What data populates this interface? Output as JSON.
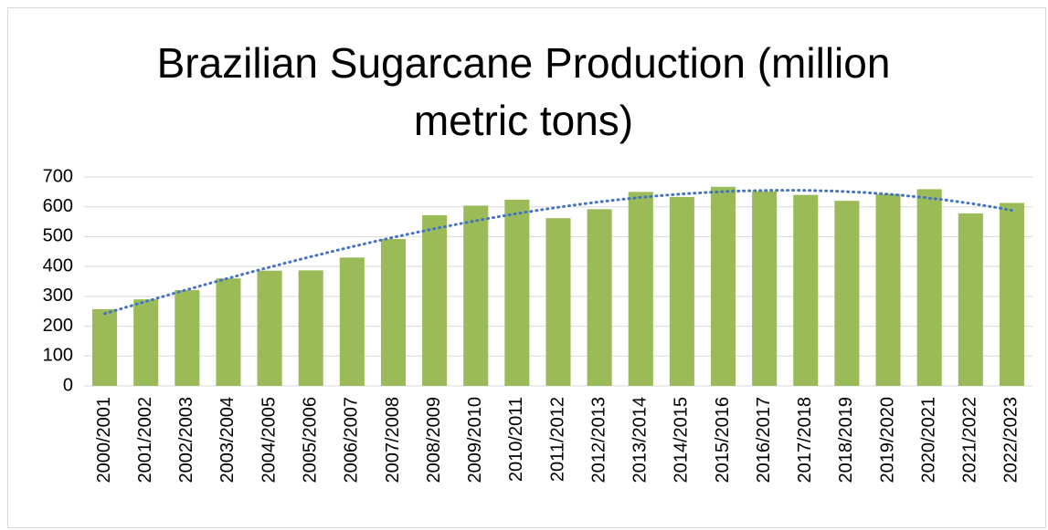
{
  "chart_data": {
    "type": "bar",
    "title": "Brazilian Sugarcane Production (million metric tons)",
    "categories": [
      "2000/2001",
      "2001/2002",
      "2002/2003",
      "2003/2004",
      "2004/2005",
      "2005/2006",
      "2006/2007",
      "2007/2008",
      "2008/2009",
      "2009/2010",
      "2010/2011",
      "2011/2012",
      "2012/2013",
      "2013/2014",
      "2014/2015",
      "2015/2016",
      "2016/2017",
      "2017/2018",
      "2018/2019",
      "2019/2020",
      "2020/2021",
      "2021/2022",
      "2022/2023"
    ],
    "values": [
      257,
      290,
      321,
      360,
      386,
      387,
      430,
      492,
      572,
      604,
      624,
      562,
      592,
      650,
      633,
      667,
      652,
      640,
      620,
      643,
      659,
      578,
      613
    ],
    "color": "#9bbb59",
    "ylim": [
      0,
      700
    ],
    "yticks": [
      0,
      100,
      200,
      300,
      400,
      500,
      600,
      700
    ],
    "grid": true,
    "trendline": {
      "type": "polynomial",
      "order": 3,
      "color": "#4472c4"
    }
  }
}
